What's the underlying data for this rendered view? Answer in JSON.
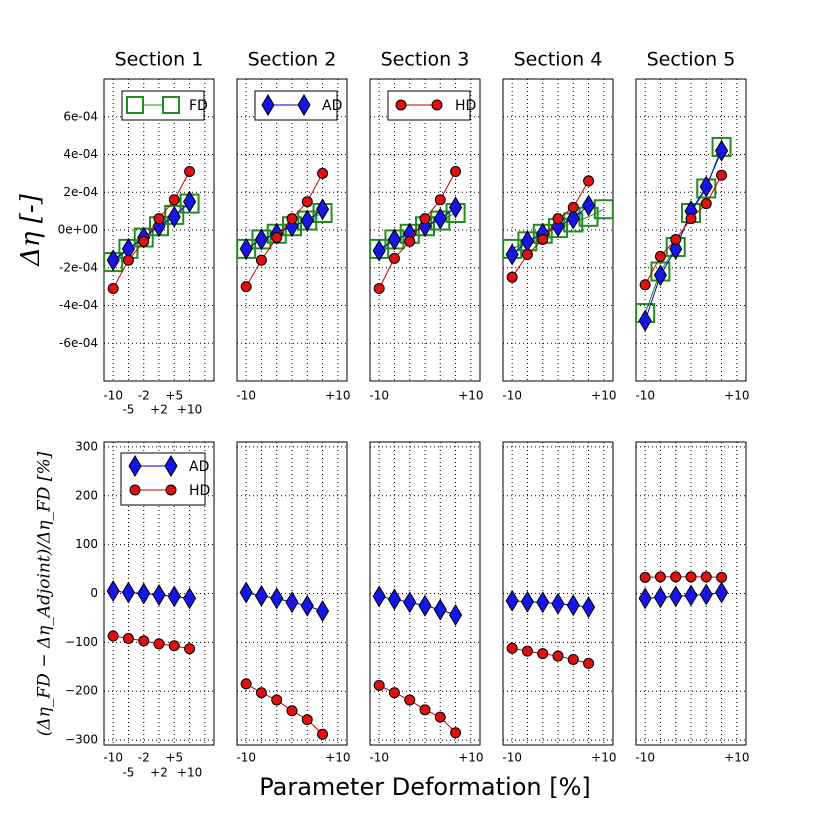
{
  "colors": {
    "fd": "#228b22",
    "ad": "#1515e8",
    "hd": "#e01010",
    "line_ad": "#0000cc",
    "line_hd": "#cc0000"
  },
  "chart_data": {
    "type": "line",
    "xlabel": "Parameter Deformation [%]",
    "top_ylabel": "Δη [-]",
    "bottom_ylabel": "(Δη_FD − Δη_Adjoint)/Δη_FD [%]",
    "x": [
      -10,
      -6.67,
      -3.33,
      0,
      3.33,
      6.67,
      10
    ],
    "xlim": [
      -12,
      12
    ],
    "top_ylim": [
      -0.0008,
      0.0008
    ],
    "top_yticks": [
      "6e-04",
      "4e-04",
      "2e-04",
      "0e+00",
      "-2e-04",
      "-4e-04",
      "-6e-04"
    ],
    "bottom_ylim": [
      -310,
      310
    ],
    "bottom_yticks": [
      "300",
      "200",
      "100",
      "0",
      "−100",
      "−200",
      "−300"
    ],
    "sections": [
      {
        "title": "Section 1",
        "top_legend": "FD",
        "bottom_legend": [
          "AD",
          "HD"
        ],
        "x_ticks_row1": [
          "-10",
          "-2",
          "+5"
        ],
        "x_ticks_row2": [
          "-5",
          "+2",
          "+10"
        ],
        "fd": [
          -0.00017,
          -0.0001,
          -4e-05,
          2e-05,
          8e-05,
          0.00014,
          null
        ],
        "ad": [
          -0.00016,
          -0.0001,
          -4e-05,
          2e-05,
          7e-05,
          0.00015,
          null
        ],
        "hd": [
          -0.00031,
          -0.00016,
          -6e-05,
          6e-05,
          0.00016,
          0.00031,
          null
        ],
        "ad_diff": [
          5,
          2,
          0,
          -3,
          -6,
          -10,
          null
        ],
        "hd_diff": [
          -87,
          -92,
          -97,
          -103,
          -107,
          -113,
          null
        ]
      },
      {
        "title": "Section 2",
        "top_legend": "AD",
        "x_ticks_row1": [
          "-10",
          "+10"
        ],
        "x_ticks_row2": [],
        "fd": [
          -0.0001,
          -5e-05,
          -2e-05,
          2e-05,
          5e-05,
          9e-05,
          null
        ],
        "ad": [
          -0.0001,
          -5e-05,
          -2e-05,
          2e-05,
          5e-05,
          0.00011,
          null
        ],
        "hd": [
          -0.0003,
          -0.00016,
          -4e-05,
          6e-05,
          0.00015,
          0.0003,
          null
        ],
        "ad_diff": [
          2,
          -5,
          -10,
          -18,
          -25,
          -36,
          null
        ],
        "hd_diff": [
          -185,
          -203,
          -218,
          -240,
          -258,
          -288,
          null
        ]
      },
      {
        "title": "Section 3",
        "top_legend": "HD",
        "x_ticks_row1": [
          "-10",
          "+10"
        ],
        "x_ticks_row2": [],
        "fd": [
          -0.0001,
          -5e-05,
          -2e-05,
          2e-05,
          5e-05,
          9e-05,
          null
        ],
        "ad": [
          -0.00011,
          -5e-05,
          -2e-05,
          2e-05,
          6e-05,
          0.00012,
          null
        ],
        "hd": [
          -0.00031,
          -0.00015,
          -6e-05,
          6e-05,
          0.00016,
          0.00031,
          null
        ],
        "ad_diff": [
          -6,
          -12,
          -18,
          -25,
          -33,
          -44,
          null
        ],
        "hd_diff": [
          -188,
          -203,
          -218,
          -238,
          -253,
          -285,
          null
        ]
      },
      {
        "title": "Section 4",
        "top_legend": null,
        "x_ticks_row1": [
          "-10",
          "+10"
        ],
        "x_ticks_row2": [],
        "fd": [
          -0.0001,
          -6e-05,
          -2e-05,
          1e-05,
          4e-05,
          7e-05,
          0.00011
        ],
        "ad": [
          -0.00013,
          -6e-05,
          -2e-05,
          2e-05,
          6e-05,
          0.00013,
          null
        ],
        "hd": [
          -0.00025,
          -0.00013,
          -5e-05,
          6e-05,
          0.00012,
          0.00026,
          null
        ],
        "ad_diff": [
          -15,
          -17,
          -18,
          -21,
          -24,
          -28,
          null
        ],
        "hd_diff": [
          -112,
          -118,
          -123,
          -128,
          -135,
          -143,
          null
        ]
      },
      {
        "title": "Section 5",
        "top_legend": null,
        "x_ticks_row1": [
          "-10",
          "+10"
        ],
        "x_ticks_row2": [],
        "fd": [
          -0.00044,
          -0.00022,
          -9e-05,
          9e-05,
          0.00022,
          0.00044,
          null
        ],
        "ad": [
          -0.00048,
          -0.00024,
          -0.0001,
          0.0001,
          0.00023,
          0.00042,
          null
        ],
        "hd": [
          -0.00029,
          -0.00014,
          -5e-05,
          6e-05,
          0.00014,
          0.00029,
          null
        ],
        "ad_diff": [
          -10,
          -8,
          -6,
          -4,
          -2,
          2,
          null
        ],
        "hd_diff": [
          33,
          34,
          34,
          34,
          34,
          33,
          null
        ]
      }
    ]
  }
}
